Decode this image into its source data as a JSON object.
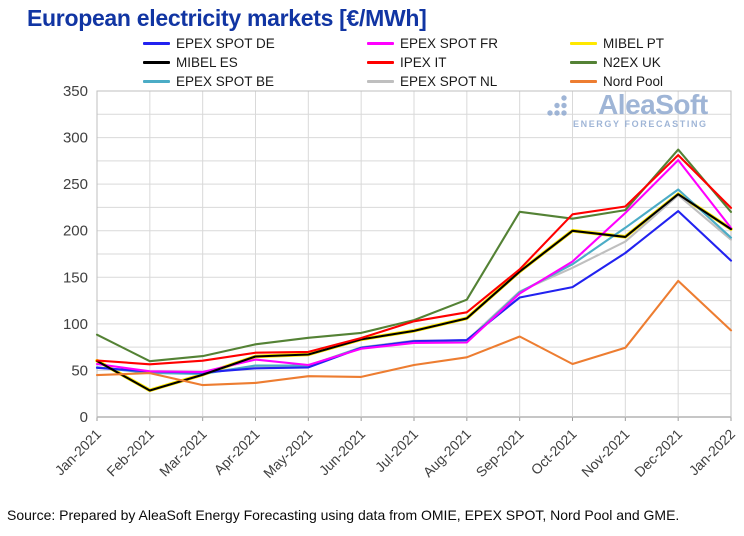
{
  "title": "European electricity markets [€/MWh]",
  "watermark": {
    "brand": "AleaSoft",
    "tagline": "ENERGY FORECASTING"
  },
  "footer": {
    "source_text": "Source: Prepared by AleaSoft Energy Forecasting using data from OMIE, EPEX SPOT, Nord Pool and GME."
  },
  "colors": {
    "title": "#1135A3",
    "watermark": "#8FA9D0",
    "grid": "#D9D9D9",
    "plot_border": "#BFBFBF",
    "axis_line": "#9A9A9A",
    "axis_text": "#404040",
    "legend_text": "#1A1A1A"
  },
  "chart_data": {
    "type": "line",
    "title": "European electricity markets [€/MWh]",
    "ylabel": "€/MWh",
    "xlabel": "",
    "ylim": [
      0,
      350
    ],
    "ytick_step": 50,
    "grid_step": 25,
    "grid": true,
    "legend_position": "top",
    "categories": [
      "Jan-2021",
      "Feb-2021",
      "Mar-2021",
      "Apr-2021",
      "May-2021",
      "Jun-2021",
      "Jul-2021",
      "Aug-2021",
      "Sep-2021",
      "Oct-2021",
      "Nov-2021",
      "Dec-2021",
      "Jan-2022"
    ],
    "series": [
      {
        "name": "EPEX SPOT DE",
        "color": "#2222F0",
        "values": [
          52.8,
          48.8,
          47.7,
          52.3,
          53.3,
          74.2,
          81.4,
          82.7,
          128.3,
          139.5,
          176.1,
          221.1,
          167.9
        ]
      },
      {
        "name": "MIBEL ES",
        "color": "#000000",
        "values": [
          60.2,
          28.5,
          45.4,
          65.0,
          67.1,
          83.3,
          92.4,
          105.9,
          156.1,
          199.9,
          193.4,
          239.2,
          201.7
        ]
      },
      {
        "name": "EPEX SPOT BE",
        "color": "#4BACC6",
        "values": [
          53.4,
          47.2,
          46.2,
          55.3,
          55.2,
          74.5,
          81.0,
          80.9,
          134.0,
          164.1,
          203.1,
          244.3,
          192.5
        ]
      },
      {
        "name": "EPEX SPOT FR",
        "color": "#FF00FF",
        "values": [
          56.9,
          49.1,
          48.3,
          61.6,
          55.8,
          73.3,
          79.6,
          80.0,
          132.6,
          166.9,
          219.0,
          275.8,
          203.0
        ]
      },
      {
        "name": "IPEX IT",
        "color": "#FF0000",
        "values": [
          60.7,
          56.6,
          60.4,
          69.0,
          69.9,
          84.8,
          102.7,
          112.4,
          158.6,
          217.6,
          226.0,
          281.2,
          224.5
        ]
      },
      {
        "name": "EPEX SPOT NL",
        "color": "#BFBFBF",
        "values": [
          53.1,
          48.0,
          47.0,
          54.6,
          55.0,
          74.8,
          81.9,
          82.2,
          134.9,
          160.2,
          188.3,
          238.1,
          190.3
        ]
      },
      {
        "name": "MIBEL PT",
        "color": "#FFE800",
        "values": [
          60.4,
          28.7,
          45.5,
          65.1,
          67.2,
          83.4,
          92.5,
          106.1,
          156.3,
          200.0,
          193.5,
          239.3,
          201.8
        ]
      },
      {
        "name": "N2EX UK",
        "color": "#548235",
        "values": [
          88.4,
          59.9,
          65.4,
          78.0,
          85.0,
          90.3,
          104.0,
          125.9,
          220.3,
          212.9,
          222.1,
          287.1,
          220.2
        ]
      },
      {
        "name": "Nord Pool",
        "color": "#ED7D31",
        "values": [
          45.0,
          47.1,
          34.2,
          36.6,
          43.8,
          43.0,
          55.8,
          64.1,
          86.4,
          56.9,
          74.3,
          146.1,
          93.0
        ]
      }
    ],
    "legend_columns": [
      [
        "EPEX SPOT DE",
        "MIBEL ES",
        "EPEX SPOT BE"
      ],
      [
        "EPEX SPOT FR",
        "IPEX IT",
        "EPEX SPOT NL"
      ],
      [
        "MIBEL PT",
        "N2EX UK",
        "Nord Pool"
      ]
    ],
    "draw_order": [
      "MIBEL PT",
      "EPEX SPOT NL",
      "EPEX SPOT BE",
      "EPEX SPOT DE",
      "EPEX SPOT FR",
      "MIBEL ES",
      "N2EX UK",
      "IPEX IT",
      "Nord Pool"
    ]
  }
}
